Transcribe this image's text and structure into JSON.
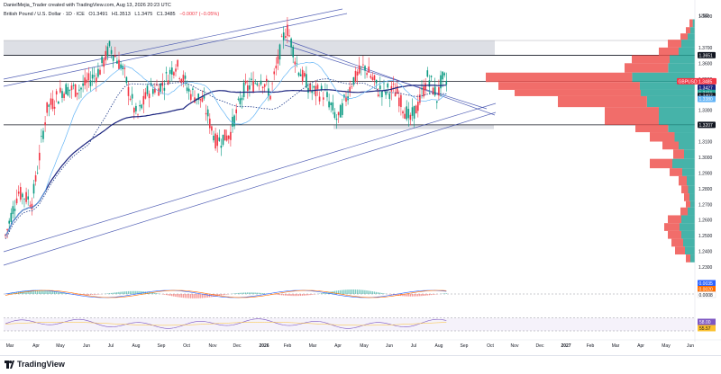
{
  "header": {
    "author_line": "DanielMejia_Trader created with TradingView.com, Aug 13, 2026 20:23 UTC"
  },
  "symbol": {
    "name": "British Pound / U.S. Dollar · 1D · ICE",
    "open": "O1.3491",
    "high": "H1.3513",
    "low": "L1.3475",
    "close": "C1.3485",
    "change": "−0.0007 (−0.05%)"
  },
  "colors": {
    "up": "#089981",
    "down": "#f23645",
    "ma_slow": "#1a237e",
    "ma_fast": "#64b5f6",
    "vp_up": "#26a69a",
    "vp_down": "#ef5350",
    "zone": "#b2b5be",
    "channel": "#3949ab"
  },
  "chart_data": {
    "type": "candlestick",
    "currency_label": "USD",
    "y_ticks": [
      "1.3900",
      "1.3700",
      "1.3600",
      "1.3500",
      "1.3400",
      "1.3300",
      "1.3100",
      "1.3000",
      "1.2900",
      "1.2800",
      "1.2700",
      "1.2600",
      "1.2500",
      "1.2400",
      "1.2300"
    ],
    "price_tags": [
      {
        "label": "1.3651",
        "value": 1.3651,
        "color": "#131722"
      },
      {
        "label": "GBPUSD 1.3485",
        "value": 1.3485,
        "color": "#f23645"
      },
      {
        "label": "1.3427",
        "value": 1.3444,
        "color": "#1a237e"
      },
      {
        "label": "1.3411",
        "value": 1.3411,
        "color": "#26a69a"
      },
      {
        "label": "1.3407",
        "value": 1.3392,
        "color": "#131722"
      },
      {
        "label": "1.3380",
        "value": 1.3372,
        "color": "#64b5f6"
      },
      {
        "label": "1.3207",
        "value": 1.3207,
        "color": "#131722"
      }
    ],
    "x_labels": [
      "Mar",
      "Apr",
      "May",
      "Jun",
      "Jul",
      "Aug",
      "Sep",
      "Oct",
      "Nov",
      "Dec",
      "2026",
      "Feb",
      "Mar",
      "Apr",
      "May",
      "Jun",
      "Jul",
      "Aug",
      "Sep",
      "Oct",
      "Nov",
      "Dec",
      "2027",
      "Feb",
      "Mar",
      "Apr",
      "May",
      "Jun"
    ],
    "horizontal_levels": [
      1.3651,
      1.3485,
      1.3207
    ],
    "resistance_zone": [
      1.3651,
      1.3745
    ],
    "support_zone": [
      1.318,
      1.3207
    ],
    "ma_fast_label": "1.3380",
    "macd": {
      "labels": [
        "0.0035",
        "0.0020",
        "0.0008"
      ]
    },
    "rsi": {
      "labels": [
        "58.00",
        "55.57"
      ],
      "levels": [
        70,
        30
      ]
    }
  },
  "footer": {
    "brand": "TradingView"
  }
}
